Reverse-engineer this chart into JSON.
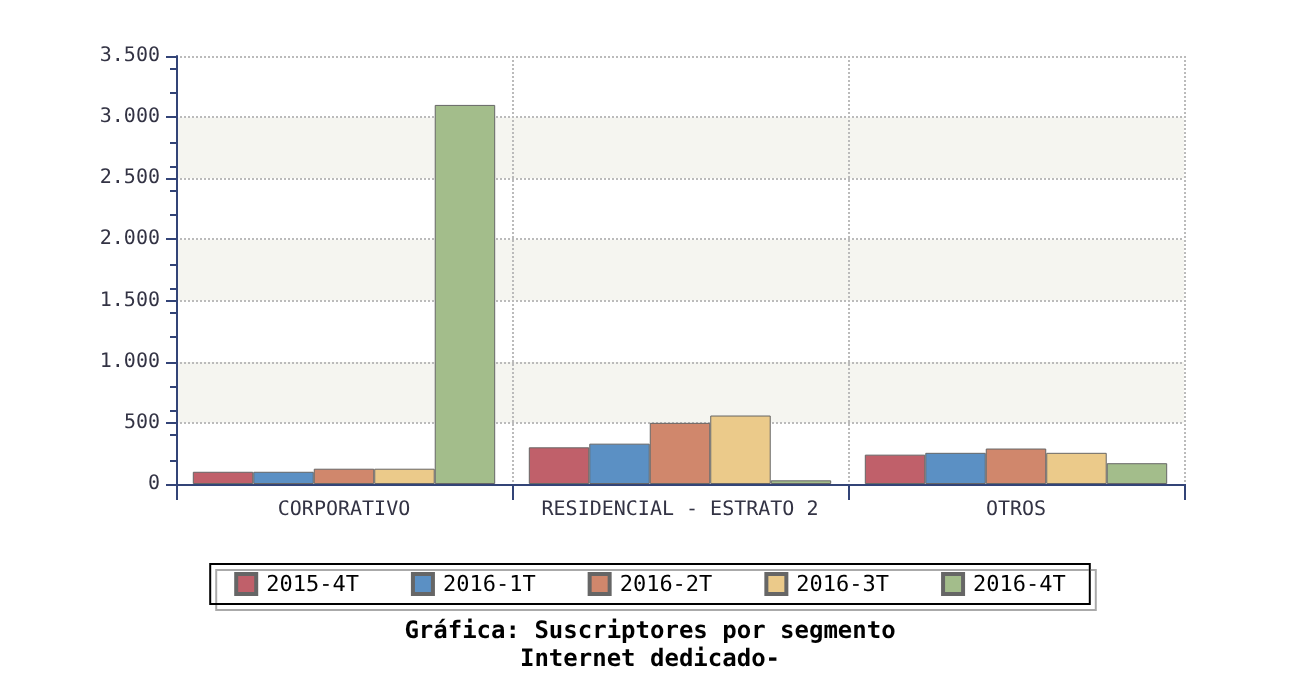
{
  "chart_data": {
    "type": "bar",
    "title": "Gráfica: Suscriptores por segmento",
    "subtitle": "Internet dedicado-",
    "categories": [
      "CORPORATIVO",
      "RESIDENCIAL - ESTRATO 2",
      "OTROS"
    ],
    "series": [
      {
        "name": "2015-4T",
        "color": "#c0606a",
        "values": [
          100,
          300,
          240
        ]
      },
      {
        "name": "2016-1T",
        "color": "#5b90c4",
        "values": [
          100,
          330,
          255
        ]
      },
      {
        "name": "2016-2T",
        "color": "#d0876c",
        "values": [
          125,
          500,
          290
        ]
      },
      {
        "name": "2016-3T",
        "color": "#ebca8a",
        "values": [
          125,
          560,
          255
        ]
      },
      {
        "name": "2016-4T",
        "color": "#a3bd8b",
        "values": [
          3100,
          30,
          170
        ]
      }
    ],
    "ylim": [
      0,
      3500
    ],
    "yticks": [
      0,
      {
        "value": 500,
        "label": "500"
      },
      {
        "value": 1000,
        "label": "1.000"
      },
      {
        "value": 1500,
        "label": "1.500"
      },
      {
        "value": 2000,
        "label": "2.000"
      },
      {
        "value": 2500,
        "label": "2.500"
      },
      {
        "value": 3000,
        "label": "3.000"
      },
      {
        "value": 3500,
        "label": "3.500"
      }
    ],
    "grid": true,
    "legend": "bottom"
  }
}
